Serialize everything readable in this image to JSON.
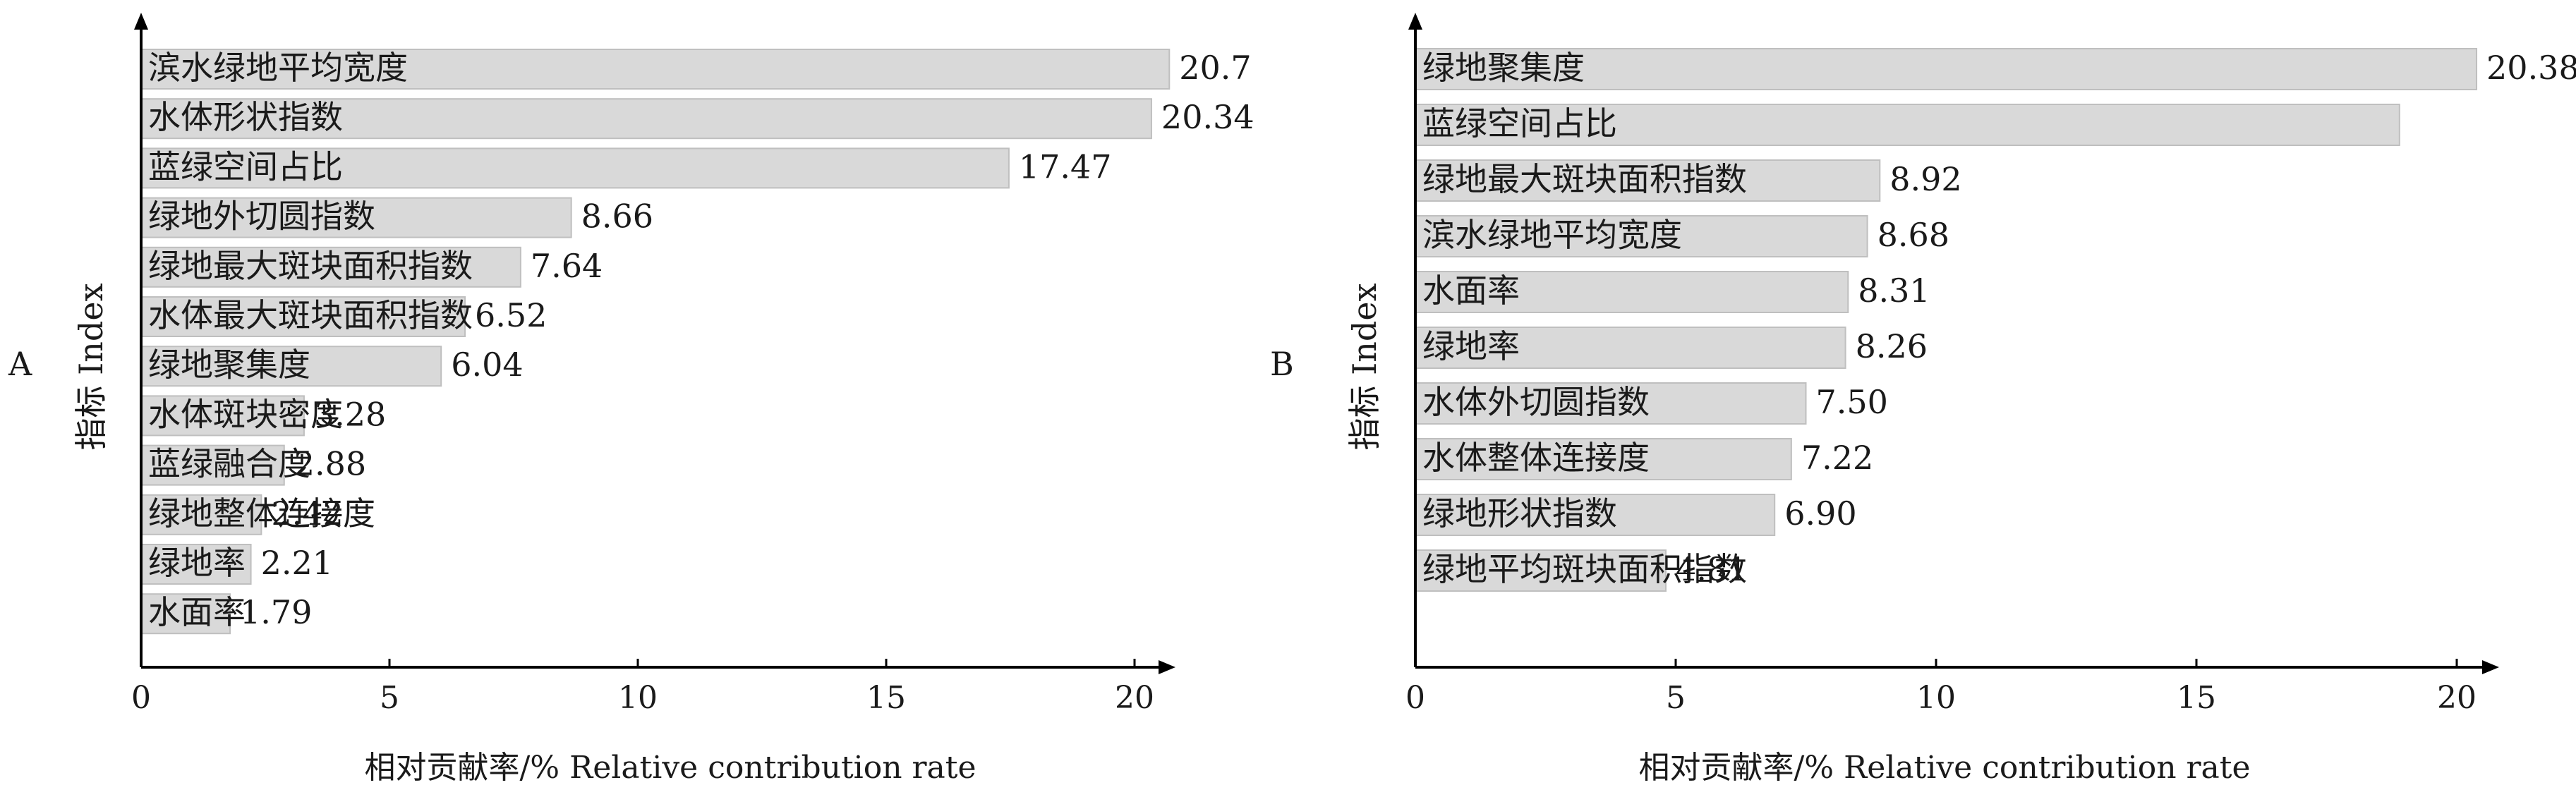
{
  "chart_data": [
    {
      "panel": "A",
      "type": "bar",
      "orientation": "horizontal",
      "ylabel": "指标 Index",
      "xlabel": "相对贡献率/% Relative contribution rate",
      "xlim": [
        0,
        20.7
      ],
      "xticks": [
        "0",
        "5",
        "10",
        "15",
        "20"
      ],
      "bar_color": "#d9d9d9",
      "bar_edge": "#bfbfbf",
      "categories": [
        "滨水绿地平均宽度",
        "水体形状指数",
        "蓝绿空间占比",
        "绿地外切圆指数",
        "绿地最大斑块面积指数",
        "水体最大斑块面积指数",
        "绿地聚集度",
        "水体斑块密度",
        "蓝绿融合度",
        "绿地整体连接度",
        "绿地率",
        "水面率"
      ],
      "values": [
        20.7,
        20.34,
        17.47,
        8.66,
        7.64,
        6.52,
        6.04,
        3.28,
        2.88,
        2.42,
        2.21,
        1.79
      ],
      "value_labels": [
        "20.7",
        "20.34",
        "17.47",
        "8.66",
        "7.64",
        "6.52",
        "6.04",
        "3.28",
        "2.88",
        "2.42",
        "2.21",
        "1.79"
      ]
    },
    {
      "panel": "B",
      "type": "bar",
      "orientation": "horizontal",
      "ylabel": "指标 Index",
      "xlabel": "相对贡献率/% Relative contribution rate",
      "xlim": [
        0,
        20.38
      ],
      "xticks": [
        "0",
        "5",
        "10",
        "15",
        "20"
      ],
      "bar_color": "#d9d9d9",
      "bar_edge": "#bfbfbf",
      "categories": [
        "绿地聚集度",
        "蓝绿空间占比",
        "绿地最大斑块面积指数",
        "滨水绿地平均宽度",
        "水面率",
        "绿地率",
        "水体外切圆指数",
        "水体整体连接度",
        "绿地形状指数",
        "绿地平均斑块面积指数"
      ],
      "values": [
        20.38,
        18.9,
        8.92,
        8.68,
        8.31,
        8.26,
        7.5,
        7.22,
        6.9,
        4.81
      ],
      "value_labels": [
        "20.38",
        "",
        "8.92",
        "8.68",
        "8.31",
        "8.26",
        "7.50",
        "7.22",
        "6.90",
        "4.81"
      ]
    }
  ]
}
